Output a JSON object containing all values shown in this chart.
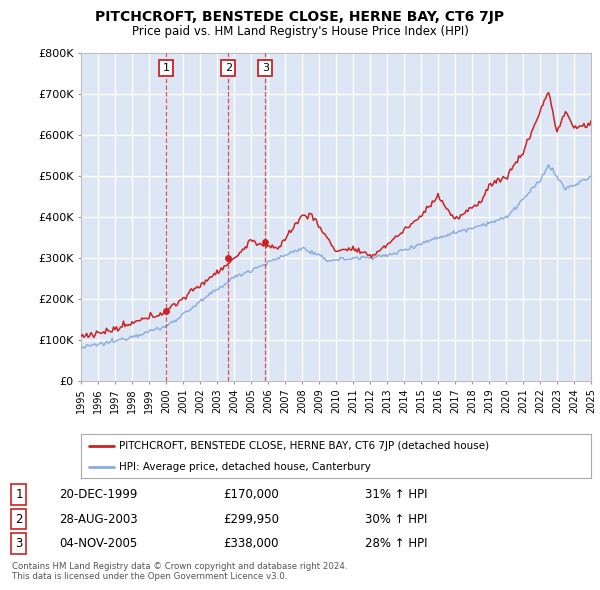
{
  "title": "PITCHCROFT, BENSTEDE CLOSE, HERNE BAY, CT6 7JP",
  "subtitle": "Price paid vs. HM Land Registry's House Price Index (HPI)",
  "x_start_year": 1995,
  "x_end_year": 2025,
  "ylim": [
    0,
    800000
  ],
  "yticks": [
    0,
    100000,
    200000,
    300000,
    400000,
    500000,
    600000,
    700000,
    800000
  ],
  "background_color": "#dce6f5",
  "grid_color": "#ffffff",
  "hpi_color": "#88aadd",
  "price_color": "#cc2222",
  "transactions": [
    {
      "label": "1",
      "year": 2000.0,
      "price": 170000
    },
    {
      "label": "2",
      "year": 2003.67,
      "price": 299950
    },
    {
      "label": "3",
      "year": 2005.84,
      "price": 338000
    }
  ],
  "legend_entries": [
    "PITCHCROFT, BENSTEDE CLOSE, HERNE BAY, CT6 7JP (detached house)",
    "HPI: Average price, detached house, Canterbury"
  ],
  "table_rows": [
    {
      "num": "1",
      "date": "20-DEC-1999",
      "price": "£170,000",
      "hpi": "31% ↑ HPI"
    },
    {
      "num": "2",
      "date": "28-AUG-2003",
      "price": "£299,950",
      "hpi": "30% ↑ HPI"
    },
    {
      "num": "3",
      "date": "04-NOV-2005",
      "price": "£338,000",
      "hpi": "28% ↑ HPI"
    }
  ],
  "footer": "Contains HM Land Registry data © Crown copyright and database right 2024.\nThis data is licensed under the Open Government Licence v3.0."
}
